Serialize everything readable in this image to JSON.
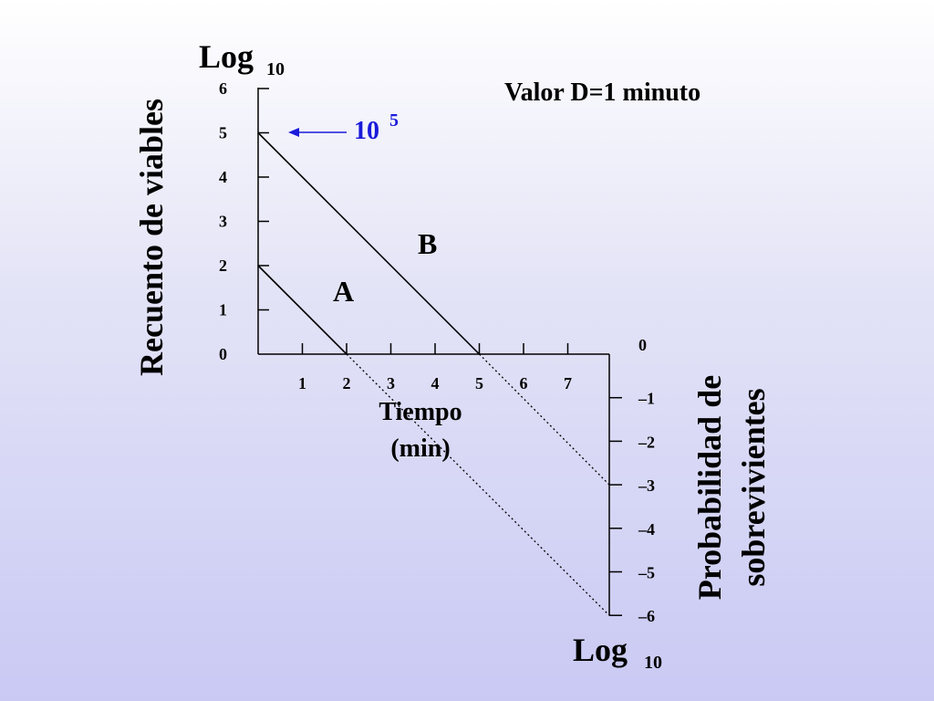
{
  "chart_data": {
    "type": "line",
    "title": "",
    "annotation": "Valor D=1 minuto",
    "x_axis": {
      "label_line1": "Tiempo",
      "label_line2": "(min)",
      "ticks": [
        "1",
        "2",
        "3",
        "4",
        "5",
        "6",
        "7"
      ],
      "range": [
        0,
        8
      ]
    },
    "y_left": {
      "label": "Recuento de viables",
      "log_text": "Log",
      "log_sub": "10",
      "ticks": [
        "0",
        "1",
        "2",
        "3",
        "4",
        "5",
        "6"
      ],
      "range": [
        0,
        6
      ]
    },
    "y_right": {
      "label_line1": "Probabilidad de",
      "label_line2": "sobrevivientes",
      "log_text": "Log",
      "log_sub": "10",
      "ticks": [
        "0",
        "–1",
        "–2",
        "–3",
        "–4",
        "–5",
        "–6"
      ],
      "range": [
        -6,
        0
      ]
    },
    "marker": {
      "base": "10",
      "exp": "5",
      "y": 5,
      "color": "#1a1adb"
    },
    "series": [
      {
        "name": "B",
        "points": [
          [
            0,
            5
          ],
          [
            5,
            0
          ]
        ],
        "extrapolated": [
          [
            5,
            0
          ],
          [
            8,
            -3
          ]
        ]
      },
      {
        "name": "A",
        "points": [
          [
            0,
            2
          ],
          [
            2,
            0
          ]
        ],
        "extrapolated": [
          [
            2,
            0
          ],
          [
            8,
            -6
          ]
        ]
      }
    ],
    "grid": false
  }
}
